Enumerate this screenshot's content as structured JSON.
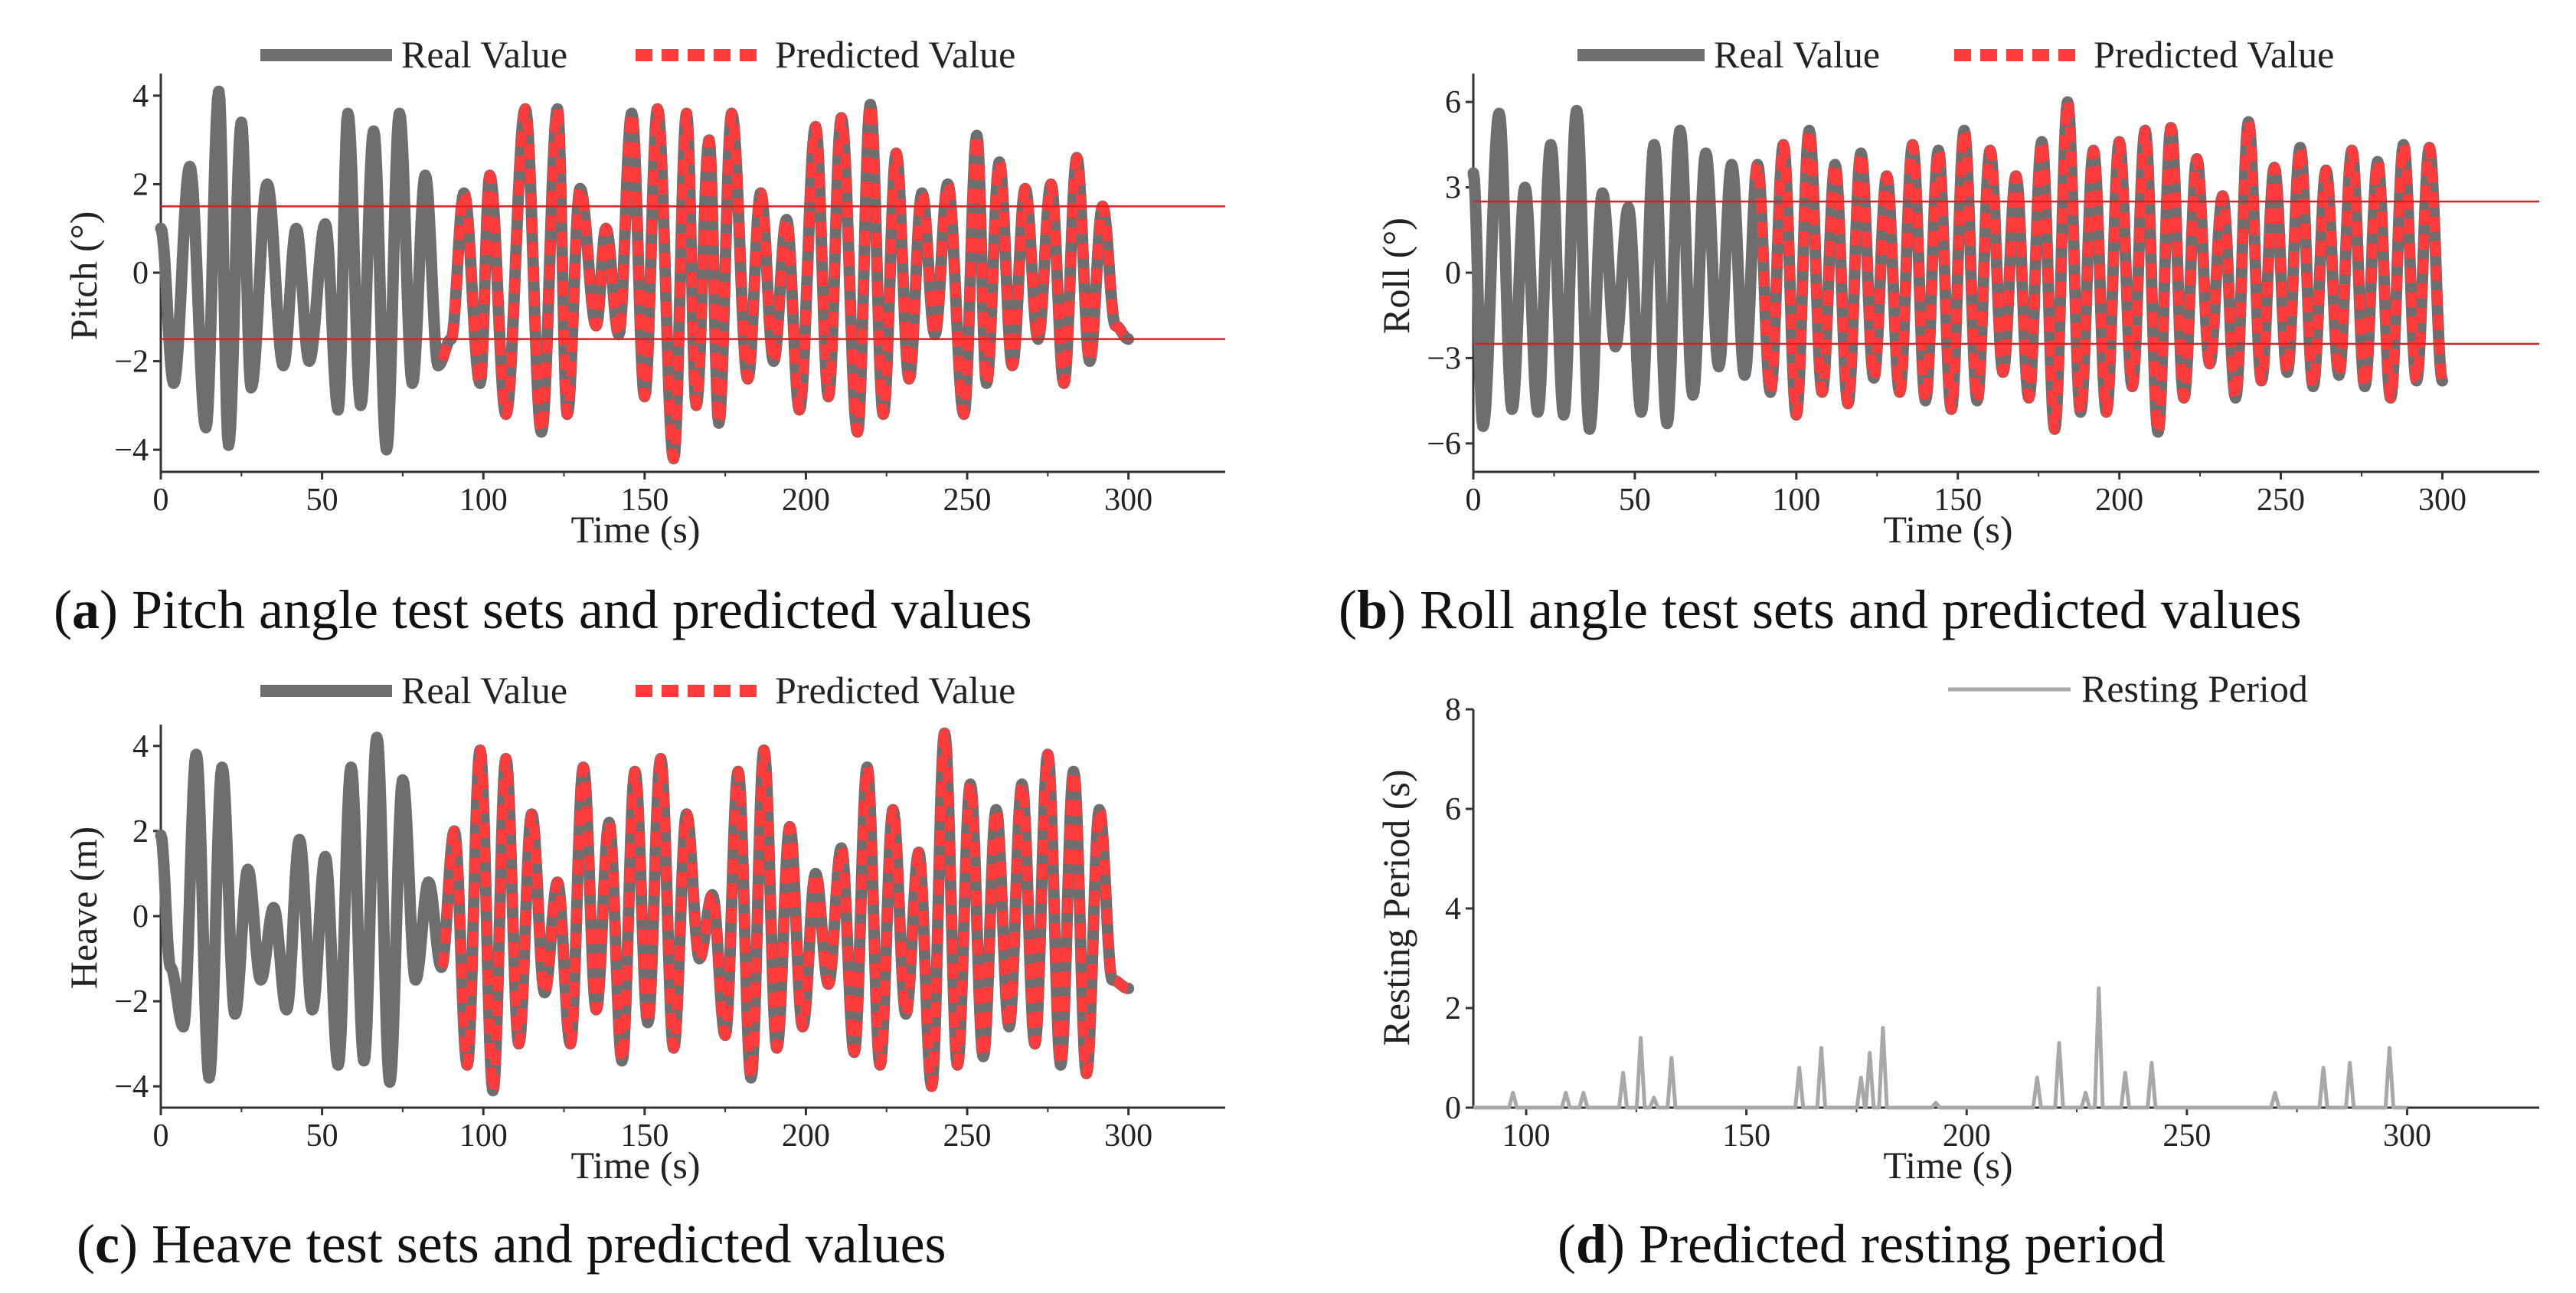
{
  "legend_labels": {
    "real": "Real Value",
    "predicted": "Predicted Value",
    "resting": "Resting Period"
  },
  "colors": {
    "real": "#6e6e6e",
    "predicted": "#ff3b3b",
    "threshold": "#e02020",
    "resting": "#a8a8a8",
    "axis": "#333333"
  },
  "chart_data": [
    {
      "id": "a",
      "type": "line",
      "caption_letter": "a",
      "caption_text": " Pitch angle test sets and predicted values",
      "xlabel": "Time (s)",
      "ylabel": "Pitch (°)",
      "xlim": [
        0,
        330
      ],
      "ylim": [
        -4.5,
        4.5
      ],
      "xticks": [
        0,
        50,
        100,
        150,
        200,
        250,
        300
      ],
      "yticks": [
        -4,
        -2,
        0,
        2,
        4
      ],
      "ytick_labels": [
        "−4",
        "−2",
        "0",
        "2",
        "4"
      ],
      "thresholds": [
        1.5,
        -1.5
      ],
      "predicted_start": 87,
      "series": [
        {
          "name": "Real Value",
          "x": [
            0,
            4,
            9,
            14,
            18,
            21,
            25,
            28,
            33,
            38,
            42,
            46,
            51,
            55,
            58,
            62,
            66,
            70,
            74,
            78,
            82,
            86,
            90,
            94,
            99,
            102,
            107,
            113,
            118,
            123,
            126,
            130,
            135,
            138,
            142,
            146,
            150,
            154,
            159,
            163,
            166,
            170,
            173,
            177,
            182,
            186,
            190,
            194,
            198,
            203,
            207,
            211,
            216,
            220,
            224,
            228,
            232,
            236,
            240,
            244,
            249,
            253,
            256,
            260,
            264,
            268,
            272,
            276,
            280,
            284,
            288,
            292,
            296,
            300
          ],
          "y": [
            1.0,
            -2.5,
            2.4,
            -3.5,
            4.1,
            -3.9,
            3.4,
            -2.6,
            2.0,
            -2.1,
            1.0,
            -2.0,
            1.1,
            -3.1,
            3.6,
            -3.0,
            3.2,
            -4.0,
            3.6,
            -2.5,
            2.2,
            -2.1,
            -1.5,
            1.8,
            -2.5,
            2.2,
            -3.2,
            3.7,
            -3.6,
            3.7,
            -3.2,
            1.9,
            -1.2,
            1.0,
            -1.4,
            3.6,
            -2.8,
            3.7,
            -4.2,
            3.6,
            -3.0,
            3.0,
            -3.4,
            3.6,
            -2.4,
            1.8,
            -2.0,
            1.2,
            -3.1,
            3.3,
            -2.8,
            3.5,
            -3.6,
            3.8,
            -3.2,
            2.7,
            -2.4,
            1.8,
            -1.4,
            2.0,
            -3.2,
            3.1,
            -2.5,
            2.5,
            -2.1,
            1.9,
            -1.5,
            2.0,
            -2.5,
            2.6,
            -2.0,
            1.5,
            -1.2,
            -1.5
          ]
        },
        {
          "name": "Predicted Value",
          "x": "same as Real Value from t ≥ 87",
          "y": "same as Real Value from t ≥ 87"
        }
      ]
    },
    {
      "id": "b",
      "type": "line",
      "caption_letter": "b",
      "caption_text": " Roll angle test sets and predicted values",
      "xlabel": "Time (s)",
      "ylabel": "Roll (°)",
      "xlim": [
        0,
        330
      ],
      "ylim": [
        -7,
        7
      ],
      "xticks": [
        0,
        50,
        100,
        150,
        200,
        250,
        300
      ],
      "yticks": [
        -6,
        -3,
        0,
        3,
        6
      ],
      "ytick_labels": [
        "−6",
        "−3",
        "0",
        "3",
        "6"
      ],
      "thresholds": [
        2.5,
        -2.5
      ],
      "predicted_start": 87,
      "series": [
        {
          "name": "Real Value",
          "x": [
            0,
            3,
            8,
            12,
            16,
            20,
            24,
            28,
            32,
            36,
            40,
            44,
            48,
            52,
            56,
            60,
            64,
            68,
            72,
            76,
            80,
            84,
            88,
            92,
            96,
            100,
            104,
            108,
            112,
            116,
            120,
            124,
            128,
            132,
            136,
            140,
            144,
            148,
            152,
            156,
            160,
            164,
            168,
            172,
            176,
            180,
            184,
            188,
            192,
            196,
            200,
            204,
            208,
            212,
            216,
            220,
            224,
            228,
            232,
            236,
            240,
            244,
            248,
            252,
            256,
            260,
            264,
            268,
            272,
            276,
            280,
            284,
            288,
            292,
            296,
            300
          ],
          "y": [
            3.5,
            -5.4,
            5.6,
            -4.8,
            3.0,
            -4.9,
            4.5,
            -5.0,
            5.7,
            -5.5,
            2.8,
            -2.6,
            2.3,
            -4.9,
            4.5,
            -5.3,
            5.0,
            -4.3,
            4.2,
            -3.3,
            3.8,
            -3.6,
            3.8,
            -4.2,
            4.5,
            -5.0,
            5.0,
            -4.2,
            3.8,
            -4.6,
            4.2,
            -3.7,
            3.4,
            -4.2,
            4.5,
            -4.5,
            4.3,
            -4.8,
            5.0,
            -4.5,
            4.3,
            -3.5,
            3.4,
            -4.4,
            4.6,
            -5.5,
            6.0,
            -4.9,
            4.3,
            -4.9,
            4.6,
            -4.0,
            5.0,
            -5.6,
            5.1,
            -4.4,
            4.0,
            -3.2,
            2.7,
            -4.4,
            5.3,
            -3.8,
            3.7,
            -3.5,
            4.4,
            -4.0,
            3.6,
            -3.6,
            4.3,
            -4.0,
            3.9,
            -4.4,
            4.5,
            -3.8,
            4.4,
            -3.8
          ]
        },
        {
          "name": "Predicted Value",
          "x": "same as Real Value from t ≥ 87",
          "y": "same as Real Value from t ≥ 87"
        }
      ]
    },
    {
      "id": "c",
      "type": "line",
      "caption_letter": "c",
      "caption_text": " Heave test sets and predicted values",
      "xlabel": "Time (s)",
      "ylabel": "Heave (m)",
      "xlim": [
        0,
        330
      ],
      "ylim": [
        -4.5,
        4.5
      ],
      "xticks": [
        0,
        50,
        100,
        150,
        200,
        250,
        300
      ],
      "yticks": [
        -4,
        -2,
        0,
        2,
        4
      ],
      "ytick_labels": [
        "−4",
        "−2",
        "0",
        "2",
        "4"
      ],
      "thresholds": [],
      "predicted_start": 87,
      "series": [
        {
          "name": "Real Value",
          "x": [
            0,
            3,
            7,
            11,
            15,
            19,
            23,
            27,
            31,
            35,
            39,
            43,
            47,
            51,
            55,
            59,
            63,
            67,
            71,
            75,
            79,
            83,
            87,
            91,
            95,
            99,
            103,
            107,
            111,
            115,
            119,
            123,
            127,
            131,
            135,
            139,
            143,
            147,
            151,
            155,
            159,
            163,
            167,
            171,
            175,
            179,
            183,
            187,
            191,
            195,
            199,
            203,
            207,
            211,
            215,
            219,
            223,
            227,
            231,
            235,
            239,
            243,
            247,
            251,
            255,
            259,
            263,
            267,
            271,
            275,
            279,
            283,
            287,
            291,
            295,
            300
          ],
          "y": [
            1.9,
            -1.2,
            -2.6,
            3.8,
            -3.8,
            3.5,
            -2.3,
            1.1,
            -1.5,
            0.2,
            -2.2,
            1.8,
            -2.2,
            1.4,
            -3.5,
            3.5,
            -3.4,
            4.2,
            -3.9,
            3.2,
            -1.5,
            0.8,
            -1.2,
            2.0,
            -3.5,
            3.9,
            -4.1,
            3.7,
            -3.0,
            2.4,
            -1.8,
            0.8,
            -3.0,
            3.5,
            -2.2,
            2.2,
            -3.4,
            3.4,
            -2.5,
            3.7,
            -3.1,
            2.4,
            -1.0,
            0.5,
            -2.8,
            3.4,
            -3.8,
            3.9,
            -3.1,
            2.1,
            -2.6,
            1.0,
            -1.6,
            1.6,
            -3.2,
            3.5,
            -3.5,
            2.5,
            -2.3,
            1.5,
            -4.0,
            4.3,
            -3.5,
            3.1,
            -3.3,
            2.5,
            -2.6,
            3.1,
            -3.0,
            3.8,
            -3.5,
            3.4,
            -3.7,
            2.5,
            -1.5,
            -1.7
          ]
        },
        {
          "name": "Predicted Value",
          "x": "same as Real Value from t ≥ 87",
          "y": "same as Real Value from t ≥ 87"
        }
      ]
    },
    {
      "id": "d",
      "type": "line",
      "caption_letter": "d",
      "caption_text": " Predicted resting period",
      "xlabel": "Time (s)",
      "ylabel": "Resting Period (s)",
      "xlim": [
        88,
        330
      ],
      "ylim": [
        0,
        8
      ],
      "xticks": [
        100,
        150,
        200,
        250,
        300
      ],
      "yticks": [
        0,
        2,
        4,
        6,
        8
      ],
      "ytick_labels": [
        "0",
        "2",
        "4",
        "6",
        "8"
      ],
      "series": [
        {
          "name": "Resting Period",
          "spikes": [
            [
              97,
              0.3
            ],
            [
              109,
              0.3
            ],
            [
              113,
              0.3
            ],
            [
              122,
              0.7
            ],
            [
              126,
              1.4
            ],
            [
              129,
              0.2
            ],
            [
              133,
              1.0
            ],
            [
              162,
              0.8
            ],
            [
              167,
              1.2
            ],
            [
              176,
              0.6
            ],
            [
              178,
              1.1
            ],
            [
              181,
              1.6
            ],
            [
              193,
              0.1
            ],
            [
              216,
              0.6
            ],
            [
              221,
              1.3
            ],
            [
              227,
              0.3
            ],
            [
              230,
              2.4
            ],
            [
              236,
              0.7
            ],
            [
              242,
              0.9
            ],
            [
              270,
              0.3
            ],
            [
              281,
              0.8
            ],
            [
              287,
              0.9
            ],
            [
              296,
              1.2
            ]
          ]
        }
      ]
    }
  ]
}
